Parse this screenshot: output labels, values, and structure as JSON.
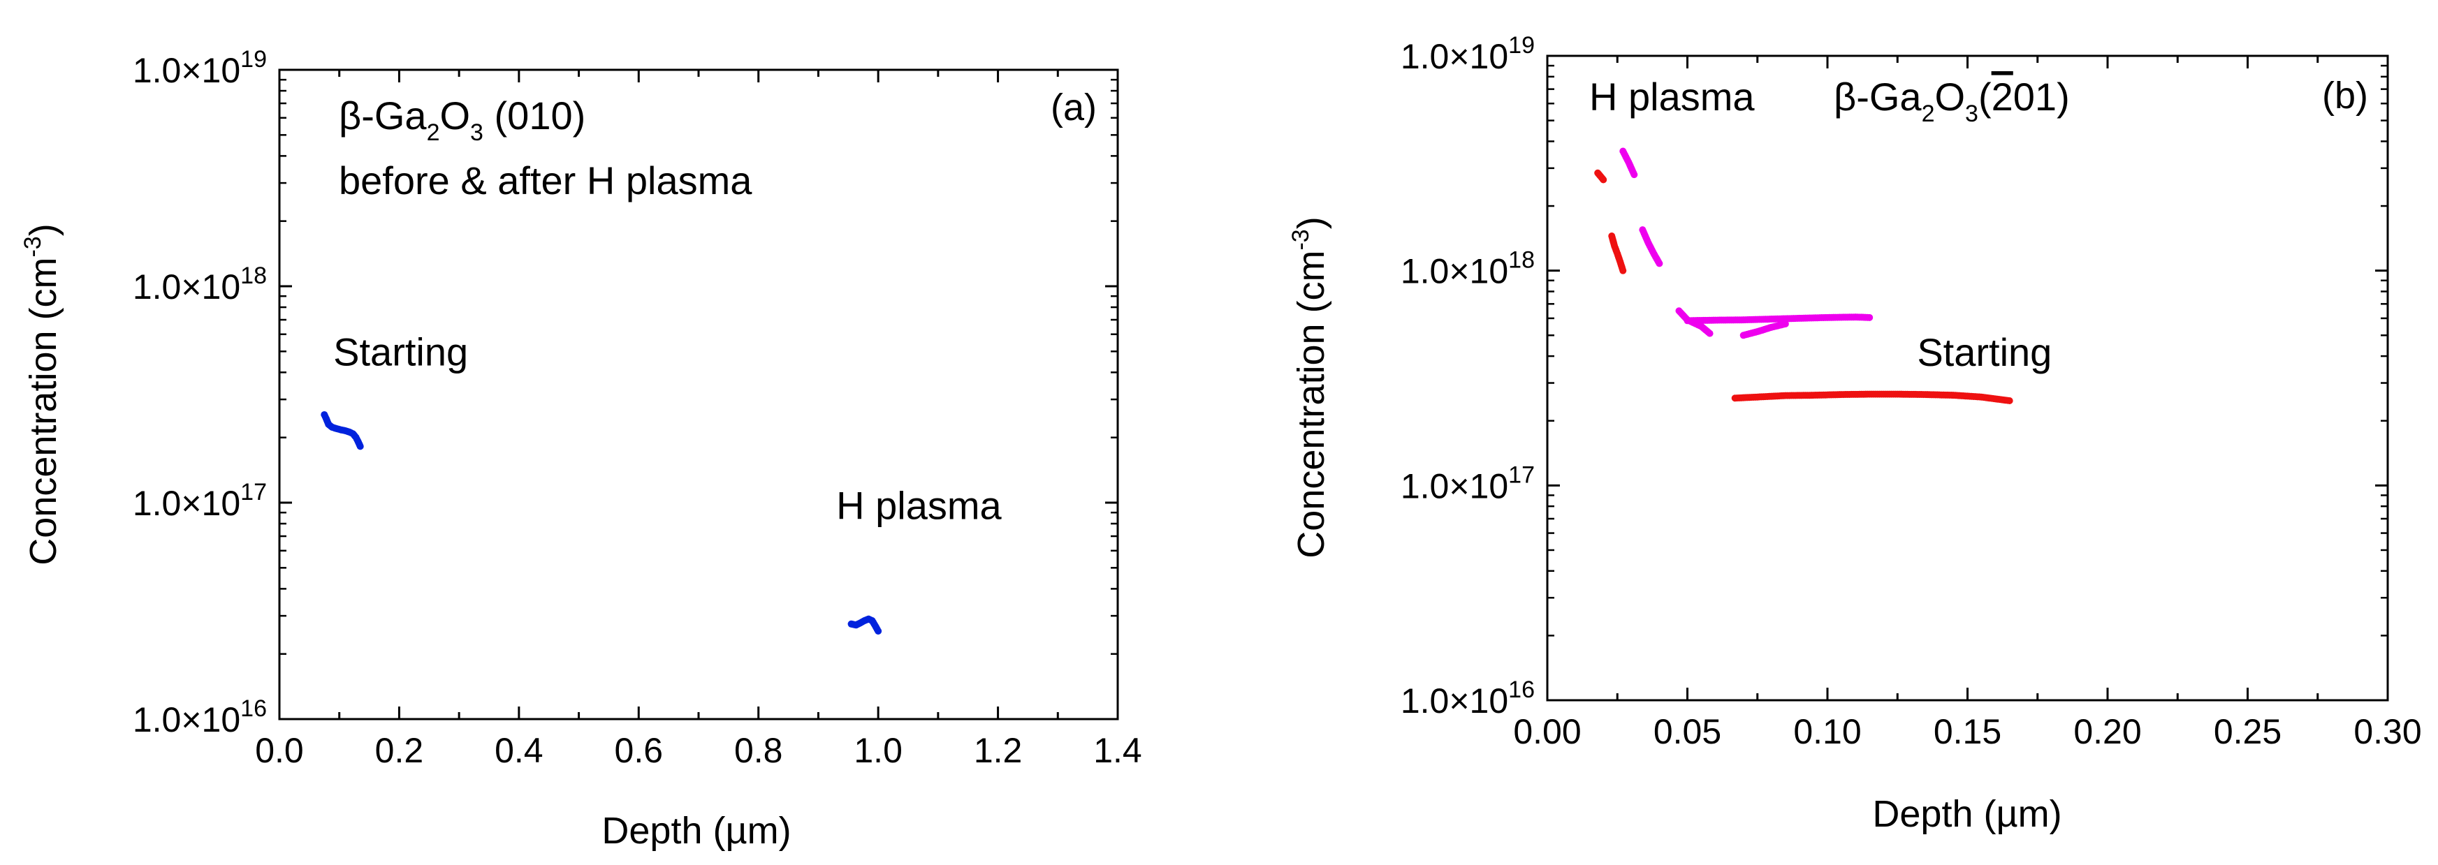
{
  "chart_data": [
    {
      "id": "panel-a",
      "type": "scatter",
      "panel_label": "(a)",
      "xlabel": "Depth (µm)",
      "ylabel": {
        "text": "Concentration (cm",
        "sup": "-3",
        "close": ")"
      },
      "x_scale": "linear",
      "y_scale": "log",
      "xlim": [
        0.0,
        1.4
      ],
      "ylim": [
        1e+16,
        1e+19
      ],
      "x_ticks": [
        0.0,
        0.2,
        0.4,
        0.6,
        0.8,
        1.0,
        1.2,
        1.4
      ],
      "x_tick_labels": [
        "0.0",
        "0.2",
        "0.4",
        "0.6",
        "0.8",
        "1.0",
        "1.2",
        "1.4"
      ],
      "y_ticks": [
        1e+16,
        1e+17,
        1e+18,
        1e+19
      ],
      "y_tick_labels": [
        {
          "mantissa": "1.0×10",
          "exp": "16"
        },
        {
          "mantissa": "1.0×10",
          "exp": "17"
        },
        {
          "mantissa": "1.0×10",
          "exp": "18"
        },
        {
          "mantissa": "1.0×10",
          "exp": "19"
        }
      ],
      "title_lines": [
        {
          "parts": [
            "β-Ga",
            "2",
            "O",
            "3",
            " (010)"
          ]
        },
        {
          "parts": [
            "before & after H plasma"
          ]
        }
      ],
      "annotations": [
        {
          "text": "Starting",
          "x": 0.09,
          "y": 4.3e+17
        },
        {
          "text": "H plasma",
          "x": 0.93,
          "y": 8.4e+16
        }
      ],
      "series": [
        {
          "name": "Starting",
          "color": "#0022dd",
          "points": [
            [
              0.075,
              2.55e+17
            ],
            [
              0.078,
              2.45e+17
            ],
            [
              0.082,
              2.3e+17
            ],
            [
              0.088,
              2.23e+17
            ],
            [
              0.095,
              2.2e+17
            ],
            [
              0.103,
              2.17e+17
            ],
            [
              0.11,
              2.15e+17
            ],
            [
              0.117,
              2.12e+17
            ],
            [
              0.123,
              2.08e+17
            ],
            [
              0.128,
              2e+17
            ],
            [
              0.132,
              1.9e+17
            ],
            [
              0.135,
              1.82e+17
            ]
          ]
        },
        {
          "name": "H plasma",
          "color": "#0022dd",
          "points": [
            [
              0.955,
              2.75e+16
            ],
            [
              0.963,
              2.72e+16
            ],
            [
              0.97,
              2.78e+16
            ],
            [
              0.977,
              2.85e+16
            ],
            [
              0.984,
              2.9e+16
            ],
            [
              0.99,
              2.85e+16
            ],
            [
              0.995,
              2.7e+16
            ],
            [
              1.0,
              2.55e+16
            ]
          ]
        }
      ]
    },
    {
      "id": "panel-b",
      "type": "scatter",
      "panel_label": "(b)",
      "xlabel": "Depth (µm)",
      "ylabel": {
        "text": "Concentration (cm",
        "sup": "-3",
        "close": ")"
      },
      "x_scale": "linear",
      "y_scale": "log",
      "xlim": [
        0.0,
        0.3
      ],
      "ylim": [
        1e+16,
        1e+19
      ],
      "x_ticks": [
        0.0,
        0.05,
        0.1,
        0.15,
        0.2,
        0.25,
        0.3
      ],
      "x_tick_labels": [
        "0.00",
        "0.05",
        "0.10",
        "0.15",
        "0.20",
        "0.25",
        "0.30"
      ],
      "y_ticks": [
        1e+16,
        1e+17,
        1e+18,
        1e+19
      ],
      "y_tick_labels": [
        {
          "mantissa": "1.0×10",
          "exp": "16"
        },
        {
          "mantissa": "1.0×10",
          "exp": "17"
        },
        {
          "mantissa": "1.0×10",
          "exp": "18"
        },
        {
          "mantissa": "1.0×10",
          "exp": "19"
        }
      ],
      "header_left": "H plasma",
      "header_formula": {
        "parts": [
          "β-Ga",
          "2",
          "O",
          "3",
          "(",
          "2",
          "01)"
        ]
      },
      "annotations": [
        {
          "text": "Starting",
          "x": 0.132,
          "y": 3.6e+17
        }
      ],
      "series": [
        {
          "name": "Starting (segment 1)",
          "color": "#ee1111",
          "points": [
            [
              0.018,
              2.85e+18
            ],
            [
              0.019,
              2.75e+18
            ],
            [
              0.02,
              2.65e+18
            ]
          ]
        },
        {
          "name": "Starting (segment 2)",
          "color": "#ee1111",
          "points": [
            [
              0.023,
              1.45e+18
            ],
            [
              0.024,
              1.3e+18
            ],
            [
              0.025,
              1.2e+18
            ],
            [
              0.026,
              1.1e+18
            ],
            [
              0.027,
              1e+18
            ]
          ]
        },
        {
          "name": "Starting (bulk)",
          "color": "#ee1111",
          "points": [
            [
              0.067,
              2.55e+17
            ],
            [
              0.075,
              2.58e+17
            ],
            [
              0.085,
              2.62e+17
            ],
            [
              0.095,
              2.63e+17
            ],
            [
              0.105,
              2.65e+17
            ],
            [
              0.115,
              2.66e+17
            ],
            [
              0.125,
              2.66e+17
            ],
            [
              0.135,
              2.65e+17
            ],
            [
              0.145,
              2.63e+17
            ],
            [
              0.155,
              2.58e+17
            ],
            [
              0.165,
              2.48e+17
            ]
          ]
        },
        {
          "name": "H plasma (segment 1)",
          "color": "#ee00ee",
          "points": [
            [
              0.027,
              3.6e+18
            ],
            [
              0.029,
              3.2e+18
            ],
            [
              0.031,
              2.8e+18
            ]
          ]
        },
        {
          "name": "H plasma (segment 2)",
          "color": "#ee00ee",
          "points": [
            [
              0.034,
              1.55e+18
            ],
            [
              0.036,
              1.35e+18
            ],
            [
              0.038,
              1.2e+18
            ],
            [
              0.04,
              1.08e+18
            ]
          ]
        },
        {
          "name": "H plasma (segment 3)",
          "color": "#ee00ee",
          "points": [
            [
              0.047,
              6.5e+17
            ],
            [
              0.05,
              5.9e+17
            ],
            [
              0.055,
              5.5e+17
            ],
            [
              0.058,
              5.1e+17
            ]
          ]
        },
        {
          "name": "H plasma (bulk)",
          "color": "#ee00ee",
          "points": [
            [
              0.05,
              5.85e+17
            ],
            [
              0.06,
              5.88e+17
            ],
            [
              0.07,
              5.9e+17
            ],
            [
              0.08,
              5.95e+17
            ],
            [
              0.09,
              6e+17
            ],
            [
              0.1,
              6.05e+17
            ],
            [
              0.11,
              6.08e+17
            ],
            [
              0.115,
              6.05e+17
            ]
          ]
        },
        {
          "name": "H plasma (segment 4)",
          "color": "#ee00ee",
          "points": [
            [
              0.07,
              5e+17
            ],
            [
              0.075,
              5.2e+17
            ],
            [
              0.08,
              5.45e+17
            ],
            [
              0.085,
              5.65e+17
            ]
          ]
        }
      ]
    }
  ]
}
